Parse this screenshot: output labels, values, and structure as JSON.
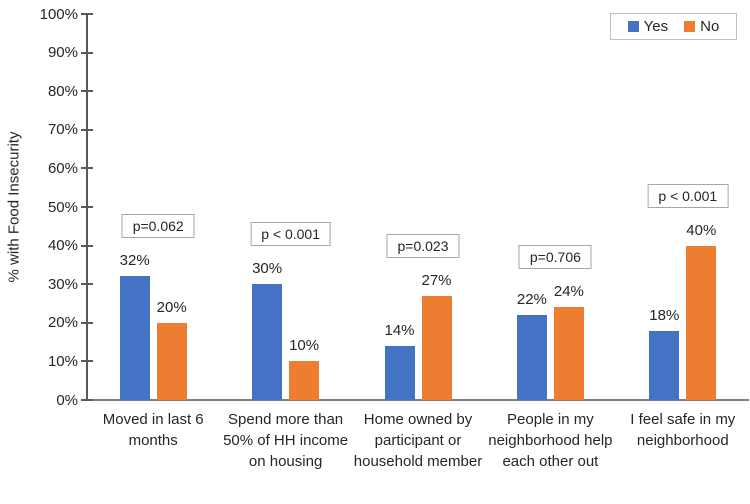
{
  "chart_data": {
    "type": "bar",
    "title": "",
    "xlabel": "",
    "ylabel": "% with Food Insecurity",
    "ylim": [
      0,
      100
    ],
    "ytick_step": 10,
    "ytick_labels": [
      "0%",
      "10%",
      "20%",
      "30%",
      "40%",
      "50%",
      "60%",
      "70%",
      "80%",
      "90%",
      "100%"
    ],
    "grid": false,
    "legend": {
      "position": "top-right",
      "entries": [
        "Yes",
        "No"
      ]
    },
    "categories": [
      "Moved in last 6 months",
      "Spend more than 50% of HH income on housing",
      "Home owned by participant or household member",
      "People in my neighborhood help each other out",
      "I feel safe in my neighborhood"
    ],
    "series": [
      {
        "name": "Yes",
        "color": "#4472C4",
        "values": [
          32,
          30,
          14,
          22,
          18
        ]
      },
      {
        "name": "No",
        "color": "#ED7D31",
        "values": [
          20,
          10,
          27,
          24,
          40
        ]
      }
    ],
    "value_labels": [
      [
        "32%",
        "30%",
        "14%",
        "22%",
        "18%"
      ],
      [
        "20%",
        "10%",
        "27%",
        "24%",
        "40%"
      ]
    ],
    "p_values": [
      "p=0.062",
      "p < 0.001",
      "p=0.023",
      "p=0.706",
      "p < 0.001"
    ]
  },
  "colors": {
    "bar_yes": "#4472C4",
    "bar_no": "#ED7D31",
    "axis_line": "#808080",
    "tick": "#595959",
    "text": "#262626",
    "p_box_border": "#a6a6a6",
    "legend_border": "#bfbfbf",
    "background": "#ffffff"
  }
}
